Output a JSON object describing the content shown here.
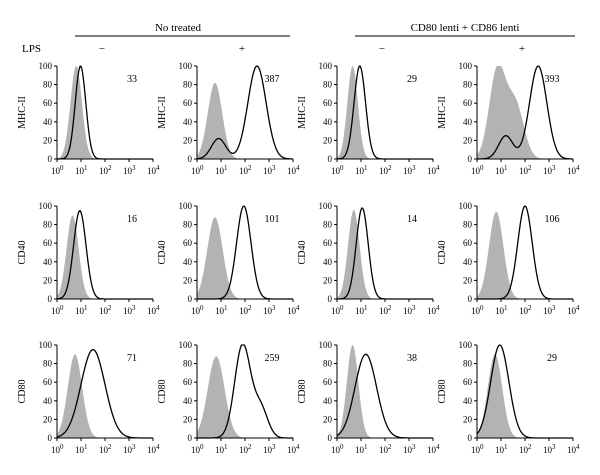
{
  "header": {
    "group_left": "No treated",
    "group_right": "CD80 lenti + CD86 lenti",
    "lps_label": "LPS",
    "lps_values": [
      "−",
      "+",
      "−",
      "+"
    ]
  },
  "chart_data": {
    "type": "histogram-grid",
    "layout": {
      "rows": 3,
      "cols": 4
    },
    "x_axis": {
      "scale": "log",
      "range": [
        1,
        10000
      ],
      "tick_values": [
        1,
        10,
        100,
        1000,
        10000
      ],
      "tick_bases": [
        "10",
        "10",
        "10",
        "10",
        "10"
      ],
      "tick_exponents": [
        "0",
        "1",
        "2",
        "3",
        "4"
      ]
    },
    "y_axis": {
      "range": [
        0,
        100
      ],
      "ticks": [
        "0",
        "20",
        "40",
        "60",
        "80",
        "100"
      ]
    },
    "series_style": {
      "control": "gray filled histogram",
      "stained": "black line histogram"
    },
    "rows": [
      {
        "marker": "MHC-II",
        "mfi": [
          "33",
          "387",
          "29",
          "393"
        ]
      },
      {
        "marker": "CD40",
        "mfi": [
          "16",
          "101",
          "14",
          "106"
        ]
      },
      {
        "marker": "CD80",
        "mfi": [
          "71",
          "259",
          "38",
          "29"
        ]
      }
    ],
    "panels": [
      {
        "row": 0,
        "col": 0,
        "control": {
          "peaks": [
            [
              0.8,
              100,
              0.24
            ]
          ]
        },
        "stained": {
          "peaks": [
            [
              0.98,
              100,
              0.22
            ]
          ]
        }
      },
      {
        "row": 0,
        "col": 1,
        "control": {
          "peaks": [
            [
              0.75,
              82,
              0.3
            ]
          ]
        },
        "stained": {
          "peaks": [
            [
              2.5,
              100,
              0.38
            ],
            [
              0.9,
              22,
              0.3
            ]
          ]
        }
      },
      {
        "row": 0,
        "col": 2,
        "control": {
          "peaks": [
            [
              0.65,
              100,
              0.22
            ]
          ]
        },
        "stained": {
          "peaks": [
            [
              0.95,
              100,
              0.24
            ]
          ]
        }
      },
      {
        "row": 0,
        "col": 3,
        "control": {
          "peaks": [
            [
              0.85,
              96,
              0.34
            ],
            [
              1.6,
              58,
              0.35
            ]
          ]
        },
        "stained": {
          "peaks": [
            [
              2.55,
              100,
              0.36
            ],
            [
              1.2,
              25,
              0.3
            ]
          ]
        }
      },
      {
        "row": 1,
        "col": 0,
        "control": {
          "peaks": [
            [
              0.65,
              90,
              0.25
            ]
          ]
        },
        "stained": {
          "peaks": [
            [
              0.95,
              95,
              0.26
            ]
          ]
        }
      },
      {
        "row": 1,
        "col": 1,
        "control": {
          "peaks": [
            [
              0.75,
              88,
              0.32
            ]
          ]
        },
        "stained": {
          "peaks": [
            [
              1.95,
              100,
              0.3
            ]
          ]
        }
      },
      {
        "row": 1,
        "col": 2,
        "control": {
          "peaks": [
            [
              0.7,
              96,
              0.24
            ]
          ]
        },
        "stained": {
          "peaks": [
            [
              1.05,
              98,
              0.25
            ]
          ]
        }
      },
      {
        "row": 1,
        "col": 3,
        "control": {
          "peaks": [
            [
              0.8,
              94,
              0.3
            ]
          ]
        },
        "stained": {
          "peaks": [
            [
              2.0,
              100,
              0.3
            ]
          ]
        }
      },
      {
        "row": 2,
        "col": 0,
        "control": {
          "peaks": [
            [
              0.75,
              90,
              0.3
            ]
          ]
        },
        "stained": {
          "peaks": [
            [
              1.5,
              95,
              0.5
            ]
          ]
        }
      },
      {
        "row": 2,
        "col": 1,
        "control": {
          "peaks": [
            [
              0.8,
              88,
              0.35
            ]
          ]
        },
        "stained": {
          "peaks": [
            [
              1.9,
              100,
              0.33
            ],
            [
              2.65,
              32,
              0.3
            ]
          ]
        }
      },
      {
        "row": 2,
        "col": 2,
        "control": {
          "peaks": [
            [
              0.65,
              100,
              0.24
            ]
          ]
        },
        "stained": {
          "peaks": [
            [
              1.2,
              90,
              0.45
            ]
          ]
        }
      },
      {
        "row": 2,
        "col": 3,
        "control": {
          "peaks": [
            [
              0.75,
              90,
              0.3
            ]
          ]
        },
        "stained": {
          "peaks": [
            [
              0.95,
              100,
              0.38
            ]
          ]
        }
      }
    ]
  }
}
